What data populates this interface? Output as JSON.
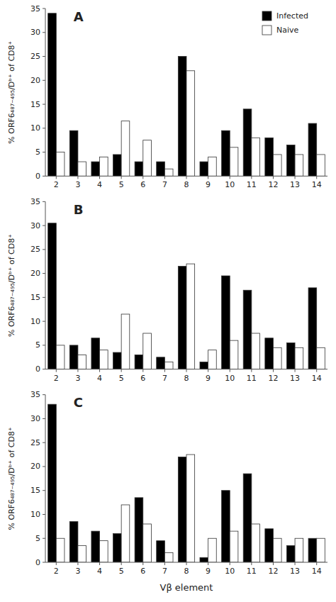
{
  "chart_data": [
    {
      "type": "bar",
      "title": "A",
      "categories": [
        "2",
        "3",
        "4",
        "5",
        "6",
        "7",
        "8",
        "9",
        "10",
        "11",
        "12",
        "13",
        "14"
      ],
      "series": [
        {
          "name": "Infected",
          "color": "#000000",
          "values": [
            34,
            9.5,
            3,
            4.5,
            3,
            3,
            25,
            3,
            9.5,
            14,
            8,
            6.5,
            11
          ]
        },
        {
          "name": "Naive",
          "color": "#ffffff",
          "values": [
            5,
            3,
            4,
            11.5,
            7.5,
            1.5,
            22,
            4,
            6,
            8,
            4.5,
            4.5,
            4.5
          ]
        }
      ],
      "ylabel": "% ORF6₄₈₇₋₄₉₅/Dᵇ⁺ of CD8⁺",
      "ylim": [
        0,
        35
      ],
      "yticks": [
        0,
        5,
        10,
        15,
        20,
        25,
        30,
        35
      ],
      "legend": "upper right"
    },
    {
      "type": "bar",
      "title": "B",
      "categories": [
        "2",
        "3",
        "4",
        "5",
        "6",
        "7",
        "8",
        "9",
        "10",
        "11",
        "12",
        "13",
        "14"
      ],
      "series": [
        {
          "color": "#000000",
          "values": [
            30.5,
            5,
            6.5,
            3.5,
            3,
            2.5,
            21.5,
            1.5,
            19.5,
            16.5,
            6.5,
            5.5,
            17
          ]
        },
        {
          "color": "#ffffff",
          "values": [
            5,
            3,
            4,
            11.5,
            7.5,
            1.5,
            22,
            4,
            6,
            7.5,
            4.5,
            4.5,
            4.5
          ]
        }
      ],
      "ylabel": "% ORF6₄₈₇₋₄₉₅/Dᵇ⁺ of CD8⁺",
      "ylim": [
        0,
        35
      ],
      "yticks": [
        0,
        5,
        10,
        15,
        20,
        25,
        30,
        35
      ]
    },
    {
      "type": "bar",
      "title": "C",
      "categories": [
        "2",
        "3",
        "4",
        "5",
        "6",
        "7",
        "8",
        "9",
        "10",
        "11",
        "12",
        "13",
        "14"
      ],
      "series": [
        {
          "color": "#000000",
          "values": [
            33,
            8.5,
            6.5,
            6,
            13.5,
            4.5,
            22,
            1,
            15,
            18.5,
            7,
            3.5,
            5
          ]
        },
        {
          "color": "#ffffff",
          "values": [
            5,
            3.5,
            4.5,
            12,
            8,
            2,
            22.5,
            5,
            6.5,
            8,
            5,
            5,
            5
          ]
        }
      ],
      "xlabel": "Vβ element",
      "ylabel": "% ORF6₄₈₇₋₄₉₅/Dᵇ⁺ of CD8⁺",
      "ylim": [
        0,
        35
      ],
      "yticks": [
        0,
        5,
        10,
        15,
        20,
        25,
        30,
        35
      ]
    }
  ]
}
